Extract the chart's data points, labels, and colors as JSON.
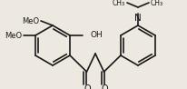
{
  "bg_color": "#ede8e0",
  "line_color": "#1a1a1a",
  "lw": 1.2,
  "figsize": [
    2.06,
    0.98
  ],
  "dpi": 100,
  "xlim": [
    0,
    206
  ],
  "ylim": [
    0,
    98
  ]
}
